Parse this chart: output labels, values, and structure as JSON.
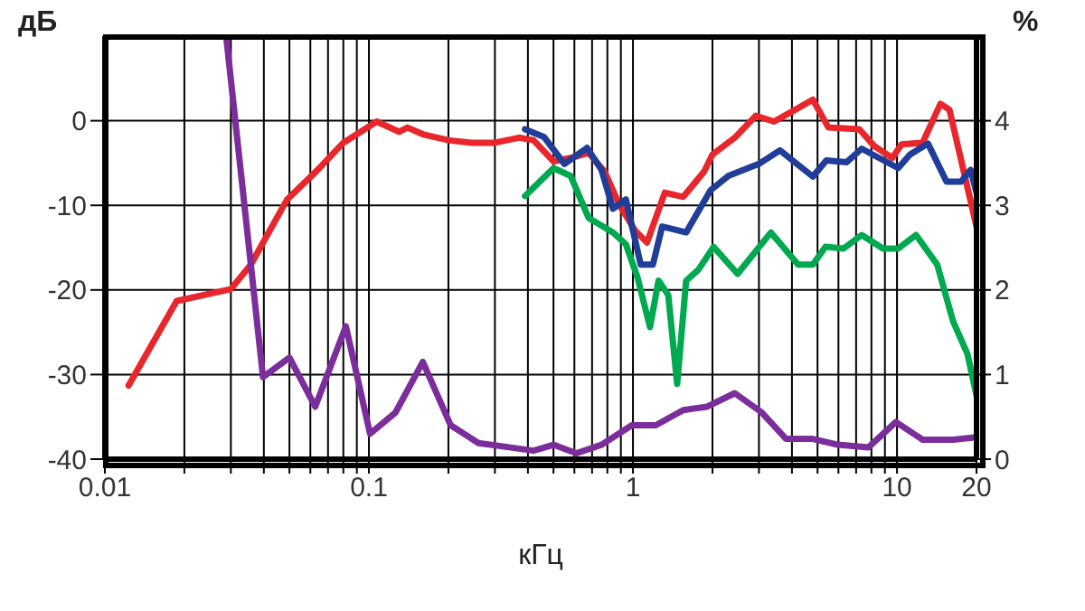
{
  "chart_data": {
    "type": "line",
    "xlabel": "кГц",
    "ylabel": "дБ",
    "y2label": "%",
    "log": "x",
    "grid": true,
    "xlim": [
      0.01,
      20
    ],
    "xticks": [
      0.01,
      {
        "value": 0.02,
        "label": null
      },
      {
        "value": 0.03,
        "label": null
      },
      {
        "value": 0.04,
        "label": null
      },
      {
        "value": 0.05,
        "label": null
      },
      {
        "value": 0.06,
        "label": null
      },
      {
        "value": 0.07,
        "label": null
      },
      {
        "value": 0.08,
        "label": null
      },
      {
        "value": 0.09,
        "label": null
      },
      0.1,
      {
        "value": 0.2,
        "label": null
      },
      {
        "value": 0.3,
        "label": null
      },
      {
        "value": 0.4,
        "label": null
      },
      {
        "value": 0.5,
        "label": null
      },
      {
        "value": 0.6,
        "label": null
      },
      {
        "value": 0.7,
        "label": null
      },
      {
        "value": 0.8,
        "label": null
      },
      {
        "value": 0.9,
        "label": null
      },
      1,
      {
        "value": 2,
        "label": null
      },
      {
        "value": 3,
        "label": null
      },
      {
        "value": 4,
        "label": null
      },
      {
        "value": 5,
        "label": null
      },
      {
        "value": 6,
        "label": null
      },
      {
        "value": 7,
        "label": null
      },
      {
        "value": 8,
        "label": null
      },
      {
        "value": 9,
        "label": null
      },
      10,
      20
    ],
    "ylim": [
      -40,
      10
    ],
    "yticks": [
      -40,
      -30,
      -20,
      -10,
      0
    ],
    "y2lim": [
      0,
      5
    ],
    "y2ticks": [
      0,
      1,
      2,
      3,
      4
    ],
    "series": [
      {
        "color": "#e8262b",
        "x": [
          0.0123,
          0.0187,
          0.03,
          0.0357,
          0.049,
          0.064,
          0.08,
          0.107,
          0.13,
          0.14,
          0.16,
          0.2,
          0.245,
          0.3,
          0.37,
          0.42,
          0.5,
          0.58,
          0.68,
          0.78,
          0.89,
          1.02,
          1.13,
          1.32,
          1.55,
          1.86,
          2.0,
          2.43,
          2.92,
          3.42,
          4.12,
          4.8,
          5.5,
          7.2,
          8.2,
          9.6,
          10.4,
          12.5,
          14.6,
          15.8,
          20
        ],
        "values": [
          -31.3,
          -21.3,
          -19.9,
          -17,
          -9.3,
          -5.8,
          -2.6,
          -0.1,
          -1.3,
          -0.8,
          -1.6,
          -2.3,
          -2.6,
          -2.6,
          -2.0,
          -2.3,
          -4.8,
          -4.4,
          -3.8,
          -6,
          -10,
          -13,
          -14.4,
          -8.5,
          -9,
          -6,
          -4,
          -2,
          0.6,
          -0.1,
          1.3,
          2.5,
          -0.8,
          -1,
          -3,
          -4.4,
          -2.8,
          -2.6,
          2,
          1.3,
          -12.5
        ]
      },
      {
        "color": "#1f3d99",
        "x": [
          0.39,
          0.46,
          0.55,
          0.67,
          0.76,
          0.84,
          0.94,
          1.07,
          1.19,
          1.29,
          1.59,
          1.97,
          2.3,
          3.0,
          3.6,
          4.8,
          5.4,
          6.45,
          7.35,
          10.1,
          11.2,
          13.1,
          15.4,
          17.5,
          19.0,
          20
        ],
        "values": [
          -1,
          -1.9,
          -5.1,
          -3.2,
          -5.8,
          -10.4,
          -9.3,
          -17,
          -17,
          -12.5,
          -13.2,
          -8.2,
          -6.5,
          -5.1,
          -3.5,
          -6.6,
          -4.7,
          -4.9,
          -3.3,
          -5.6,
          -4,
          -2.7,
          -7.2,
          -7.2,
          -5.8,
          -8.5
        ]
      },
      {
        "color": "#00a84f",
        "x": [
          0.39,
          0.5,
          0.58,
          0.68,
          0.84,
          0.94,
          1.04,
          1.16,
          1.25,
          1.36,
          1.47,
          1.59,
          1.77,
          2.02,
          2.49,
          3.33,
          4.22,
          4.8,
          5.36,
          6.27,
          7.35,
          8.85,
          10.1,
          11.8,
          14.2,
          16.3,
          18.5,
          20
        ],
        "values": [
          -8.9,
          -5.6,
          -6.5,
          -11.5,
          -13.2,
          -14.6,
          -18.5,
          -24.4,
          -18.9,
          -20.6,
          -31.1,
          -18.9,
          -17.6,
          -14.9,
          -18.1,
          -13.2,
          -17,
          -17,
          -14.9,
          -15.1,
          -13.5,
          -15.1,
          -15.1,
          -13.5,
          -17,
          -23.7,
          -27.6,
          -32.5
        ]
      },
      {
        "color": "#7b2d9b",
        "axis": "y2",
        "x": [
          0.0288,
          0.0397,
          0.05,
          0.0626,
          0.0818,
          0.101,
          0.126,
          0.16,
          0.204,
          0.26,
          0.34,
          0.42,
          0.5,
          0.61,
          0.76,
          0.99,
          1.22,
          1.55,
          1.91,
          2.43,
          3.08,
          3.8,
          4.8,
          5.97,
          7.8,
          9.9,
          12.5,
          16.3,
          20
        ],
        "values": [
          5.0,
          0.97,
          1.2,
          0.62,
          1.57,
          0.3,
          0.55,
          1.15,
          0.4,
          0.19,
          0.14,
          0.1,
          0.17,
          0.07,
          0.17,
          0.4,
          0.4,
          0.58,
          0.62,
          0.78,
          0.55,
          0.24,
          0.24,
          0.17,
          0.14,
          0.44,
          0.23,
          0.23,
          0.26
        ]
      }
    ]
  }
}
